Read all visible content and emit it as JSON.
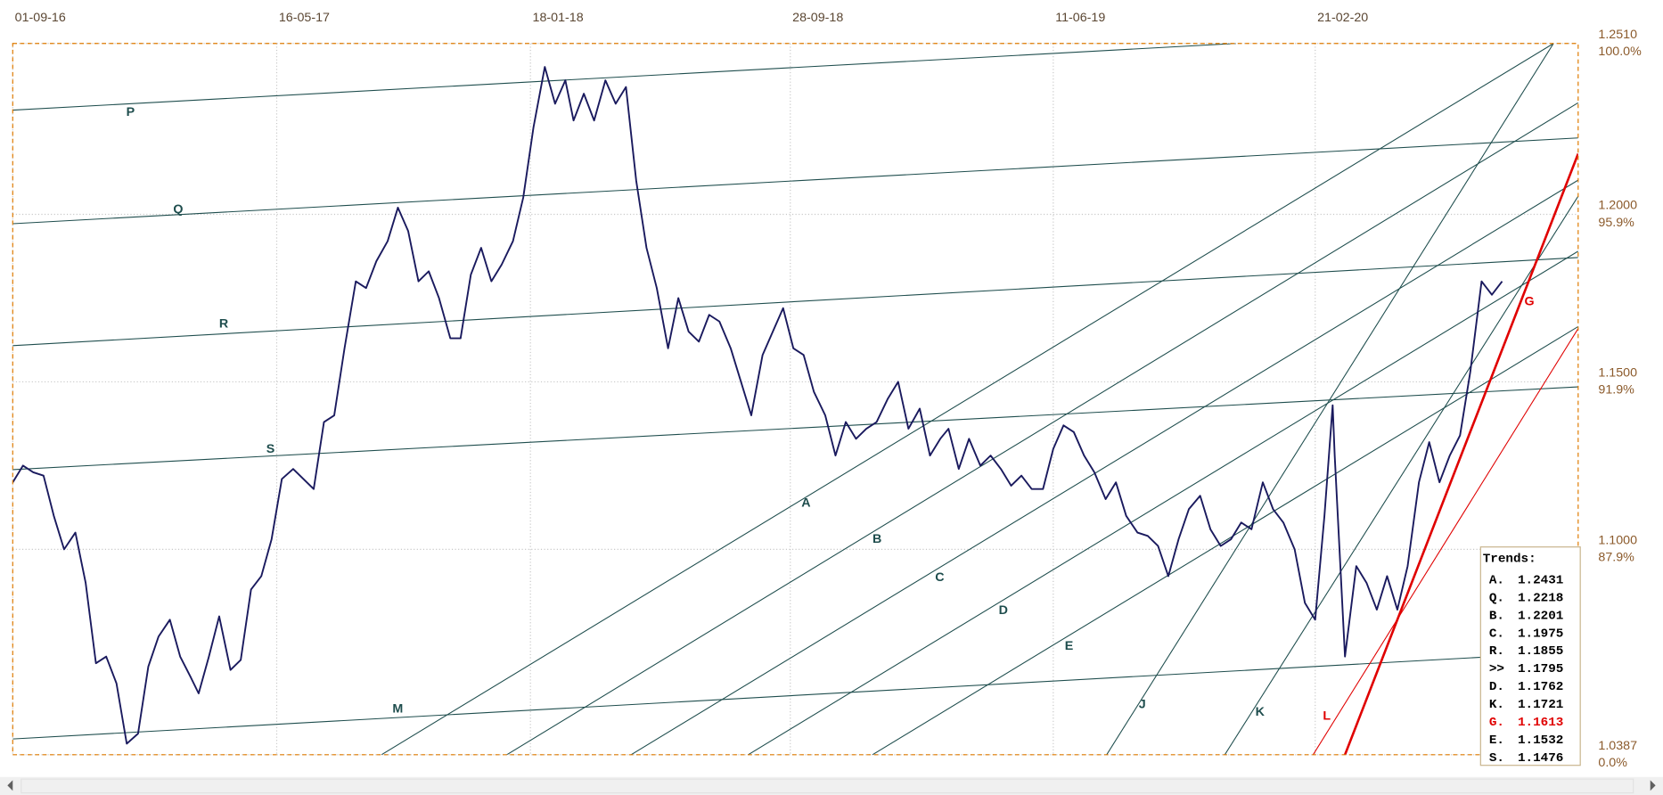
{
  "chart_data": {
    "type": "line",
    "color": "#1a1a5e",
    "grid": true,
    "xlim": [
      "2016-09-01",
      "2020-11-03"
    ],
    "xticks": [
      {
        "value": "2016-09-01",
        "label": "01-09-16"
      },
      {
        "value": "2017-05-16",
        "label": "16-05-17"
      },
      {
        "value": "2018-01-18",
        "label": "18-01-18"
      },
      {
        "value": "2018-09-28",
        "label": "28-09-18"
      },
      {
        "value": "2019-06-11",
        "label": "11-06-19"
      },
      {
        "value": "2020-02-21",
        "label": "21-02-20"
      }
    ],
    "ylim": [
      1.0387,
      1.251
    ],
    "yticks": [
      1.0387,
      {
        "value": 1.1,
        "label": "1.1000"
      },
      {
        "value": 1.15,
        "label": "1.1500"
      },
      {
        "value": 1.2,
        "label": "1.2000"
      },
      {
        "value": 1.251,
        "label": "1.2510"
      }
    ],
    "ytick_percent_labels": [
      "0.0%",
      "87.9%",
      "91.9%",
      "95.9%",
      "100.0%"
    ],
    "x": [
      "2016-09-01",
      "2016-09-11",
      "2016-09-21",
      "2016-10-01",
      "2016-10-11",
      "2016-10-21",
      "2016-11-01",
      "2016-11-11",
      "2016-11-21",
      "2016-12-01",
      "2016-12-11",
      "2016-12-21",
      "2017-01-01",
      "2017-01-11",
      "2017-01-21",
      "2017-02-01",
      "2017-02-11",
      "2017-02-21",
      "2017-03-01",
      "2017-03-11",
      "2017-03-21",
      "2017-04-01",
      "2017-04-11",
      "2017-04-21",
      "2017-05-01",
      "2017-05-11",
      "2017-05-21",
      "2017-06-01",
      "2017-06-11",
      "2017-06-21",
      "2017-07-01",
      "2017-07-11",
      "2017-07-21",
      "2017-08-01",
      "2017-08-11",
      "2017-08-21",
      "2017-09-01",
      "2017-09-11",
      "2017-09-21",
      "2017-10-01",
      "2017-10-11",
      "2017-10-21",
      "2017-11-01",
      "2017-11-11",
      "2017-11-21",
      "2017-12-01",
      "2017-12-11",
      "2017-12-21",
      "2018-01-01",
      "2018-01-11",
      "2018-01-21",
      "2018-02-01",
      "2018-02-11",
      "2018-02-21",
      "2018-03-01",
      "2018-03-11",
      "2018-03-21",
      "2018-04-01",
      "2018-04-11",
      "2018-04-21",
      "2018-05-01",
      "2018-05-11",
      "2018-05-21",
      "2018-06-01",
      "2018-06-11",
      "2018-06-21",
      "2018-07-01",
      "2018-07-11",
      "2018-07-21",
      "2018-08-01",
      "2018-08-11",
      "2018-08-21",
      "2018-09-01",
      "2018-09-11",
      "2018-09-21",
      "2018-10-01",
      "2018-10-11",
      "2018-10-21",
      "2018-11-01",
      "2018-11-11",
      "2018-11-21",
      "2018-12-01",
      "2018-12-11",
      "2018-12-21",
      "2019-01-01",
      "2019-01-11",
      "2019-01-21",
      "2019-02-01",
      "2019-02-11",
      "2019-02-21",
      "2019-03-01",
      "2019-03-11",
      "2019-03-21",
      "2019-04-01",
      "2019-04-11",
      "2019-04-21",
      "2019-05-01",
      "2019-05-11",
      "2019-05-21",
      "2019-06-01",
      "2019-06-11",
      "2019-06-21",
      "2019-07-01",
      "2019-07-11",
      "2019-07-21",
      "2019-08-01",
      "2019-08-11",
      "2019-08-21",
      "2019-09-01",
      "2019-09-11",
      "2019-09-21",
      "2019-10-01",
      "2019-10-11",
      "2019-10-21",
      "2019-11-01",
      "2019-11-11",
      "2019-11-21",
      "2019-12-01",
      "2019-12-11",
      "2019-12-21",
      "2020-01-01",
      "2020-01-11",
      "2020-01-21",
      "2020-02-01",
      "2020-02-11",
      "2020-02-21",
      "2020-03-01",
      "2020-03-09",
      "2020-03-11",
      "2020-03-21",
      "2020-04-01",
      "2020-04-11",
      "2020-04-21",
      "2020-05-01",
      "2020-05-11",
      "2020-05-21",
      "2020-06-01",
      "2020-06-11",
      "2020-06-21",
      "2020-07-01",
      "2020-07-11",
      "2020-07-21",
      "2020-08-01",
      "2020-08-11",
      "2020-08-21"
    ],
    "values": [
      1.12,
      1.125,
      1.123,
      1.122,
      1.11,
      1.1,
      1.105,
      1.09,
      1.066,
      1.068,
      1.06,
      1.042,
      1.045,
      1.065,
      1.074,
      1.079,
      1.068,
      1.062,
      1.057,
      1.068,
      1.08,
      1.064,
      1.067,
      1.088,
      1.092,
      1.103,
      1.121,
      1.124,
      1.121,
      1.118,
      1.138,
      1.14,
      1.16,
      1.18,
      1.178,
      1.186,
      1.192,
      1.202,
      1.195,
      1.18,
      1.183,
      1.175,
      1.163,
      1.163,
      1.182,
      1.19,
      1.18,
      1.185,
      1.192,
      1.205,
      1.226,
      1.244,
      1.233,
      1.24,
      1.228,
      1.236,
      1.228,
      1.24,
      1.233,
      1.238,
      1.21,
      1.19,
      1.178,
      1.16,
      1.175,
      1.165,
      1.162,
      1.17,
      1.168,
      1.16,
      1.15,
      1.14,
      1.158,
      1.165,
      1.172,
      1.16,
      1.158,
      1.147,
      1.14,
      1.128,
      1.138,
      1.133,
      1.136,
      1.138,
      1.145,
      1.15,
      1.136,
      1.142,
      1.128,
      1.133,
      1.136,
      1.124,
      1.133,
      1.125,
      1.128,
      1.124,
      1.119,
      1.122,
      1.118,
      1.118,
      1.13,
      1.137,
      1.135,
      1.128,
      1.123,
      1.115,
      1.12,
      1.11,
      1.105,
      1.104,
      1.101,
      1.092,
      1.103,
      1.112,
      1.116,
      1.106,
      1.101,
      1.103,
      1.108,
      1.106,
      1.12,
      1.112,
      1.108,
      1.1,
      1.084,
      1.079,
      1.11,
      1.143,
      1.128,
      1.068,
      1.095,
      1.09,
      1.082,
      1.092,
      1.082,
      1.095,
      1.12,
      1.132,
      1.12,
      1.128,
      1.134,
      1.153,
      1.18,
      1.176,
      1.18
    ],
    "trendlines": [
      {
        "label": "P",
        "x": [
          "2016-09-01",
          "2019-12-06"
        ],
        "y": [
          1.2311,
          1.251
        ],
        "color": "#1e4d4d"
      },
      {
        "label": "Q",
        "x": [
          "2016-09-01",
          "2020-11-03"
        ],
        "y": [
          1.1972,
          1.2228
        ],
        "color": "#1e4d4d"
      },
      {
        "label": "R",
        "x": [
          "2016-09-01",
          "2020-11-03"
        ],
        "y": [
          1.1608,
          1.1871
        ],
        "color": "#1e4d4d"
      },
      {
        "label": "S",
        "x": [
          "2016-09-01",
          "2020-11-03"
        ],
        "y": [
          1.1238,
          1.1485
        ],
        "color": "#1e4d4d"
      },
      {
        "label": "M",
        "x": [
          "2016-09-01",
          "2020-11-03"
        ],
        "y": [
          1.0434,
          1.0694
        ],
        "color": "#1e4d4d"
      },
      {
        "label": "A",
        "x": [
          "2017-08-26",
          "2020-10-10"
        ],
        "y": [
          1.0387,
          1.251
        ],
        "color": "#1e4d4d"
      },
      {
        "label": "B",
        "x": [
          "2017-12-26",
          "2020-11-03"
        ],
        "y": [
          1.0387,
          1.2333
        ],
        "color": "#1e4d4d"
      },
      {
        "label": "C",
        "x": [
          "2018-04-26",
          "2020-11-03"
        ],
        "y": [
          1.0387,
          1.2102
        ],
        "color": "#1e4d4d"
      },
      {
        "label": "D",
        "x": [
          "2018-08-18",
          "2020-11-03"
        ],
        "y": [
          1.0387,
          1.189
        ],
        "color": "#1e4d4d"
      },
      {
        "label": "E",
        "x": [
          "2018-12-17",
          "2020-11-03"
        ],
        "y": [
          1.0387,
          1.1665
        ],
        "color": "#1e4d4d"
      },
      {
        "label": "J",
        "x": [
          "2019-08-02",
          "2020-10-10"
        ],
        "y": [
          1.0387,
          1.251
        ],
        "color": "#1e4d4d"
      },
      {
        "label": "K",
        "x": [
          "2019-11-25",
          "2020-11-03"
        ],
        "y": [
          1.0387,
          1.2054
        ],
        "color": "#1e4d4d"
      },
      {
        "label": "L",
        "x": [
          "2020-02-19",
          "2020-11-03"
        ],
        "y": [
          1.0387,
          1.1659
        ],
        "color": "#e00000"
      },
      {
        "label": "G",
        "x": [
          "2020-03-21",
          "2020-11-03"
        ],
        "y": [
          1.0387,
          1.2181
        ],
        "color": "#e00000"
      }
    ],
    "legend_title": "Trends:",
    "legend_rows": [
      {
        "key": "A.",
        "value": 1.2431,
        "color": "#000000"
      },
      {
        "key": "Q.",
        "value": 1.2218,
        "color": "#000000"
      },
      {
        "key": "B.",
        "value": 1.2201,
        "color": "#000000"
      },
      {
        "key": "C.",
        "value": 1.1975,
        "color": "#000000"
      },
      {
        "key": "R.",
        "value": 1.1855,
        "color": "#000000"
      },
      {
        "key": ">>",
        "value": 1.1795,
        "color": "#000000"
      },
      {
        "key": "D.",
        "value": 1.1762,
        "color": "#000000"
      },
      {
        "key": "K.",
        "value": 1.1721,
        "color": "#000000"
      },
      {
        "key": "G.",
        "value": 1.1613,
        "color": "#e00000"
      },
      {
        "key": "E.",
        "value": 1.1532,
        "color": "#000000"
      },
      {
        "key": "S.",
        "value": 1.1476,
        "color": "#000000"
      }
    ]
  }
}
